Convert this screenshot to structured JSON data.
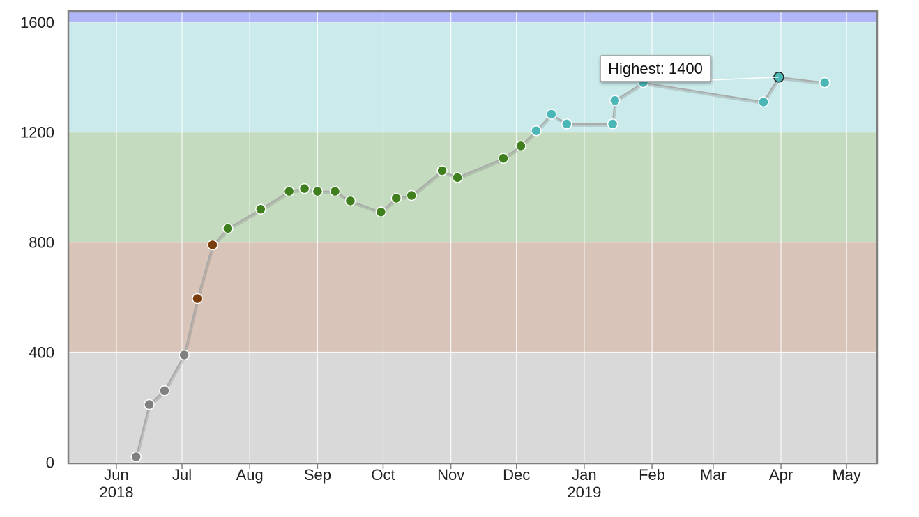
{
  "chart_data": {
    "type": "line",
    "title": "",
    "xlabel": "",
    "ylabel": "",
    "ylim": [
      -4,
      1640
    ],
    "xlim": [
      "2018-05-10",
      "2019-05-15"
    ],
    "grid": true,
    "yticks": [
      {
        "value": 0,
        "label": "0"
      },
      {
        "value": 400,
        "label": "400"
      },
      {
        "value": 800,
        "label": "800"
      },
      {
        "value": 1200,
        "label": "1200"
      },
      {
        "value": 1600,
        "label": "1600"
      }
    ],
    "xticks": [
      {
        "date": "2018-06-01",
        "label": "Jun",
        "year": "2018"
      },
      {
        "date": "2018-07-01",
        "label": "Jul",
        "year": ""
      },
      {
        "date": "2018-08-01",
        "label": "Aug",
        "year": ""
      },
      {
        "date": "2018-09-01",
        "label": "Sep",
        "year": ""
      },
      {
        "date": "2018-10-01",
        "label": "Oct",
        "year": ""
      },
      {
        "date": "2018-11-01",
        "label": "Nov",
        "year": ""
      },
      {
        "date": "2018-12-01",
        "label": "Dec",
        "year": ""
      },
      {
        "date": "2019-01-01",
        "label": "Jan",
        "year": "2019"
      },
      {
        "date": "2019-02-01",
        "label": "Feb",
        "year": ""
      },
      {
        "date": "2019-03-01",
        "label": "Mar",
        "year": ""
      },
      {
        "date": "2019-04-01",
        "label": "Apr",
        "year": ""
      },
      {
        "date": "2019-05-01",
        "label": "May",
        "year": ""
      }
    ],
    "bands": [
      {
        "from": 0,
        "to": 400,
        "color": "#d9d9d9"
      },
      {
        "from": 400,
        "to": 800,
        "color": "#d8c4b8"
      },
      {
        "from": 800,
        "to": 1200,
        "color": "#c4dbbf"
      },
      {
        "from": 1200,
        "to": 1600,
        "color": "#cbeaeb"
      },
      {
        "from": 1600,
        "to": 1640,
        "color": "#b0b6f8"
      }
    ],
    "series": [
      {
        "line_color": "#aaaaaa",
        "points": [
          {
            "date": "2018-06-10",
            "value": 20,
            "color": "#808080"
          },
          {
            "date": "2018-06-16",
            "value": 210,
            "color": "#808080"
          },
          {
            "date": "2018-06-23",
            "value": 260,
            "color": "#808080"
          },
          {
            "date": "2018-07-02",
            "value": 390,
            "color": "#808080"
          },
          {
            "date": "2018-07-08",
            "value": 595,
            "color": "#7a3e0c"
          },
          {
            "date": "2018-07-15",
            "value": 790,
            "color": "#7a3e0c"
          },
          {
            "date": "2018-07-22",
            "value": 850,
            "color": "#3f7f1e"
          },
          {
            "date": "2018-08-06",
            "value": 920,
            "color": "#3f7f1e"
          },
          {
            "date": "2018-08-19",
            "value": 985,
            "color": "#3f7f1e"
          },
          {
            "date": "2018-08-26",
            "value": 995,
            "color": "#3f7f1e"
          },
          {
            "date": "2018-09-01",
            "value": 985,
            "color": "#3f7f1e"
          },
          {
            "date": "2018-09-09",
            "value": 985,
            "color": "#3f7f1e"
          },
          {
            "date": "2018-09-16",
            "value": 950,
            "color": "#3f7f1e"
          },
          {
            "date": "2018-09-30",
            "value": 910,
            "color": "#3f7f1e"
          },
          {
            "date": "2018-10-07",
            "value": 960,
            "color": "#3f7f1e"
          },
          {
            "date": "2018-10-14",
            "value": 970,
            "color": "#3f7f1e"
          },
          {
            "date": "2018-10-28",
            "value": 1060,
            "color": "#3f7f1e"
          },
          {
            "date": "2018-11-04",
            "value": 1035,
            "color": "#3f7f1e"
          },
          {
            "date": "2018-11-25",
            "value": 1105,
            "color": "#3f7f1e"
          },
          {
            "date": "2018-12-03",
            "value": 1150,
            "color": "#3f7f1e"
          },
          {
            "date": "2018-12-10",
            "value": 1205,
            "color": "#4bb6b6"
          },
          {
            "date": "2018-12-17",
            "value": 1265,
            "color": "#4bb6b6"
          },
          {
            "date": "2018-12-24",
            "value": 1230,
            "color": "#4bb6b6"
          },
          {
            "date": "2019-01-14",
            "value": 1230,
            "color": "#4bb6b6"
          },
          {
            "date": "2019-01-15",
            "value": 1315,
            "color": "#4bb6b6"
          },
          {
            "date": "2019-01-28",
            "value": 1380,
            "color": "#4bb6b6"
          },
          {
            "date": "2019-03-24",
            "value": 1310,
            "color": "#4bb6b6"
          },
          {
            "date": "2019-03-31",
            "value": 1400,
            "color": "#4bb6b6",
            "highlight": true
          },
          {
            "date": "2019-04-21",
            "value": 1380,
            "color": "#4bb6b6"
          }
        ]
      }
    ],
    "tooltip": {
      "text": "Highest: 1400",
      "date": "2019-03-31",
      "value": 1400
    }
  }
}
